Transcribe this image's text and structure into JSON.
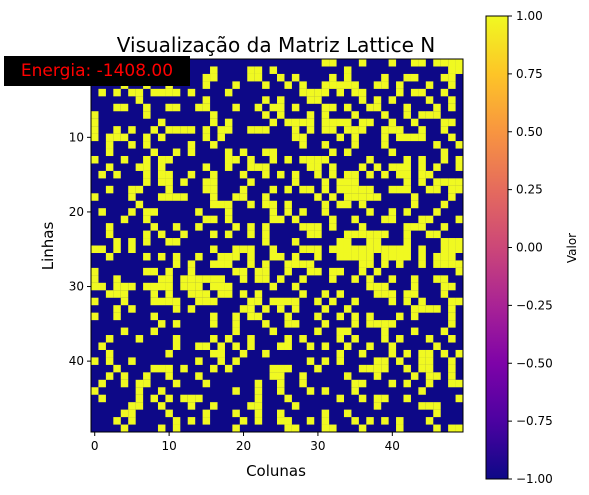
{
  "chart_data": {
    "type": "heatmap",
    "title": "Visualização da Matriz Lattice N",
    "xlabel": "Colunas",
    "ylabel": "Linhas",
    "x_ticks": [
      0,
      10,
      20,
      30,
      40
    ],
    "y_ticks": [
      10,
      20,
      30,
      40
    ],
    "grid": false,
    "annotation": "Energia: -1408.00",
    "colorbar": {
      "label": "Valor",
      "ticks": [
        "1.00",
        "0.75",
        "0.50",
        "0.25",
        "0.00",
        "−0.25",
        "−0.50",
        "−0.75",
        "−1.00"
      ],
      "range": [
        -1,
        1
      ],
      "colormap": "plasma"
    },
    "shape": [
      50,
      50
    ],
    "value_encoding": "'#' = 1 (yellow), '.' = -1 (dark blue)",
    "rows": [
      "...............................##...#...#..##.####",
      ".##.............#....##.#.........#.............##",
      ".##.......#....##....##..#.#....#.#....#..##...##.",
      "....#..#..#....#...#...#..#.#..#####..##.#...#..#.",
      ".#.#.##.####.#....#.........####.#.##....#.##..#..",
      "......#........#.......#.#...##.....#.#.#....#..#.",
      "...##..#..##..##...#..#.##.#...##.#..##...#...#.#.",
      "#......#........#......#.#...#.#...#...#..#.###...",
      "#........#......#.#.....#.####.####.##..#..#...##.",
      "#..#.#..#.####.#.##..###...#.#.##.###..###..#..#..",
      "#.###..#.#.....#.#.........##....#.#...#.####...#.",
      "..#..#.#.....#..#...........#..#...#...#......#..#",
      "..#.....#..#.#....#.#..##.......#.#.....#......#..",
      "#...#..#.##.......##.#..#.#.####.....#....#.#..#.#",
      "..#...##.#.....#..#..###.....##.#...#.#.###.#.#..#",
      ".#.#...#.##..#..#...#..#.#.#..#.#.##.#.#.##.##....",
      ".......#.##.#..##....#.....#...#.###......#.#.####",
      "..#..##...#....##...#...#.#.##.#.#####..###..##.##",
      "#....#...####...#..##..#......#.#.#####....#....#.",
      "......#.........###..#.##.#....#.##.#......#...#..",
      ".#...#.##.....#...#.....#.#.#..#.....#..#.#...#...",
      "....#..#.......##.#.....##.#....#..#...##...##...#",
      "..#.....#..#..#....#.#.#....###.#...#.....###..#..",
      "..#....#.#..#...#.#..#.#.....##...######..#..##...",
      "...#.#.#..##...........#...#.....##..##...#....###",
      "##.#.#..........#..###..#...###.###########.#..###",
      "..#....#.#.#..#..###.#..##.#..#..#####.####.#.###.",
      "...........#.#..###..#.#..####......##.#.#..#.####",
      "#......##.#..#.....##.##..#..##.##..#.#..........#",
      "#..#.....##.######..#.##.#..#...#..#.#..#..#..##..",
      "##.###.####.###.###.....#..#.........###...#...##.",
      "..###...#.#..###.##.#.#.....#..#.#....###.##...#..",
      "#...#...####..###....##.####..#.#..#....#.#.#...##",
      "...#.#.....#.#......##.#.#.#...#..#........####.#.",
      "#..#....#.......#..#.##...#...#..#.#.#...#.#....#.",
      ".........#.#....#..#...#..##...#...#.####.......#.",
      "....#...#..........#....#.....#..##....#...#...#..",
      "..#...#....#....#.#..#....#.#....#.#...#.#...#..#.",
      ".#.........#..##.#.#.#...##..#.#..#..#..#.....#...",
      "..#.......#.....##..#..#.........#..#...#.#.##.#.#",
      "#.#..#........#..#.#.........#.#.#....##.#..##..#.",
      "...#....###.#...#.#.....###...#.....####..#.##..#.",
      "..#.#..#..#...#.........##..#.....#...#....#.##.#.",
      ".#..#.##...#...#......#..#..#......##...#.#..#..##",
      "#.....#..#.........#..#..#...#.#...#........#.....",
      ".#....#.#.#.###.......#...#......#..#.##..#......#",
      ".....##..#...#..#....##....#..........#.....###...",
      "....##....#....#...#..#..#.....#..#...........#...",
      "...#.#.....#.#.#....#.#..##..#.#...#.#.#.#...#....",
      "....#....#.#.......#......##...##...#....#....#.##"
    ]
  }
}
